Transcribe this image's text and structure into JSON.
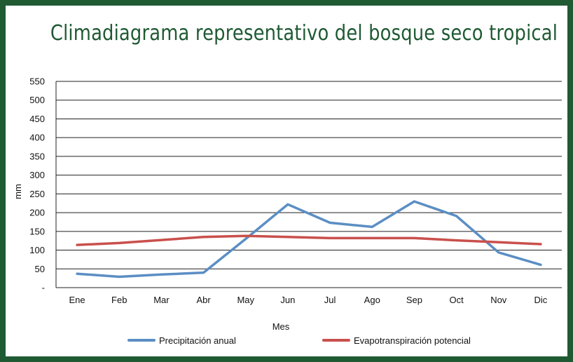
{
  "title": "Climadiagrama representativo del bosque seco tropical",
  "colors": {
    "frame": "#1f5a33",
    "title": "#1f5a33",
    "precipitation": "#5b8ec4",
    "evapotranspiration": "#c9504c",
    "grid": "#222222"
  },
  "chart_data": {
    "type": "line",
    "title": "Climadiagrama representativo del bosque seco tropical",
    "xlabel": "Mes",
    "ylabel": "mm",
    "categories": [
      "Ene",
      "Feb",
      "Mar",
      "Abr",
      "May",
      "Jun",
      "Jul",
      "Ago",
      "Sep",
      "Oct",
      "Nov",
      "Dic"
    ],
    "ylim": [
      0,
      550
    ],
    "yticks": [
      {
        "value": 0,
        "label": "-"
      },
      {
        "value": 50,
        "label": "50"
      },
      {
        "value": 100,
        "label": "100"
      },
      {
        "value": 150,
        "label": "150"
      },
      {
        "value": 200,
        "label": "200"
      },
      {
        "value": 250,
        "label": "250"
      },
      {
        "value": 300,
        "label": "300"
      },
      {
        "value": 350,
        "label": "350"
      },
      {
        "value": 400,
        "label": "400"
      },
      {
        "value": 450,
        "label": "450"
      },
      {
        "value": 500,
        "label": "500"
      },
      {
        "value": 550,
        "label": "550"
      }
    ],
    "grid": true,
    "legend_position": "bottom",
    "series": [
      {
        "name": "Precipitación anual",
        "color": "#5b8ec4",
        "values": [
          37,
          29,
          35,
          40,
          130,
          222,
          173,
          162,
          230,
          191,
          94,
          61
        ]
      },
      {
        "name": "Evapotranspiración potencial",
        "color": "#c9504c",
        "values": [
          114,
          119,
          127,
          135,
          138,
          135,
          132,
          132,
          132,
          126,
          121,
          116
        ]
      }
    ]
  }
}
